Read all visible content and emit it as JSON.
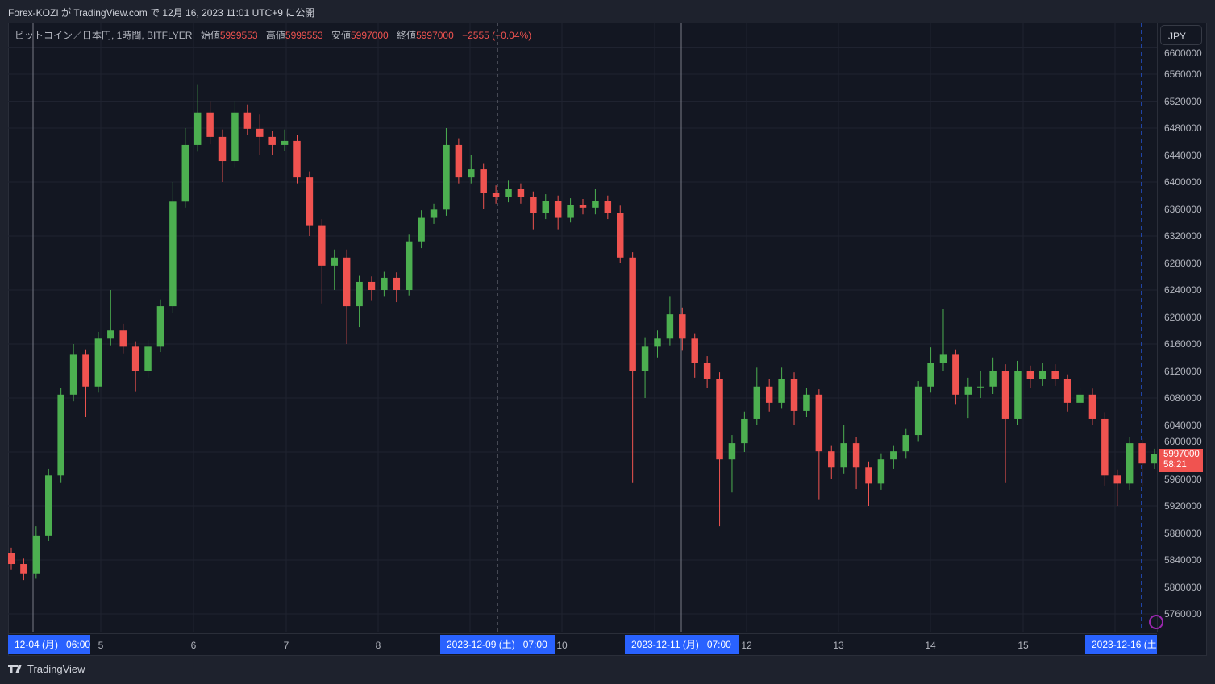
{
  "header": {
    "published": "Forex-KOZI が TradingView.com で 12月 16, 2023 11:01 UTC+9 に公開"
  },
  "legend": {
    "symbol": "ビットコイン／日本円, 1時間, BITFLYER",
    "open_label": "始値",
    "open": "5999553",
    "high_label": "高値",
    "high": "5999553",
    "low_label": "安値",
    "low": "5997000",
    "close_label": "終値",
    "close": "5997000",
    "change": "−2555 (−0.04%)"
  },
  "currency_button": "JPY",
  "last_price": {
    "value": "5997000",
    "countdown": "58:21"
  },
  "footer": {
    "brand": "TradingView"
  },
  "colors": {
    "up": "#4caf50",
    "down": "#f05350",
    "background": "#131722",
    "highlight": "#2962ff",
    "grid": "#1f2330"
  },
  "chart_data": {
    "type": "candlestick",
    "title": "",
    "ylim": [
      5740000,
      6640000
    ],
    "grid": true,
    "y_ticks": [
      "6600000",
      "6560000",
      "6520000",
      "6480000",
      "6440000",
      "6400000",
      "6360000",
      "6320000",
      "6280000",
      "6240000",
      "6200000",
      "6160000",
      "6120000",
      "6080000",
      "6040000",
      "6000000",
      "5960000",
      "5920000",
      "5880000",
      "5840000",
      "5800000",
      "5760000"
    ],
    "x_day_labels": [
      "5",
      "6",
      "7",
      "8",
      "10",
      "12",
      "13",
      "14",
      "15"
    ],
    "x_highlight_labels": [
      "12-04 (月)   06:00",
      "2023-12-09 (土)   07:00",
      "2023-12-11 (月)   07:00",
      "2023-12-16 (土"
    ],
    "ohlc_fields": [
      "open",
      "high",
      "low",
      "close"
    ],
    "candles": [
      [
        5850000,
        5858000,
        5826000,
        5834000
      ],
      [
        5834000,
        5842000,
        5810000,
        5820000
      ],
      [
        5820000,
        5890000,
        5812000,
        5876000
      ],
      [
        5876000,
        5975000,
        5868000,
        5965000
      ],
      [
        5965000,
        6095000,
        5955000,
        6085000
      ],
      [
        6085000,
        6160000,
        6075000,
        6144000
      ],
      [
        6144000,
        6152000,
        6052000,
        6097000
      ],
      [
        6097000,
        6178000,
        6088000,
        6168000
      ],
      [
        6168000,
        6240000,
        6158000,
        6180000
      ],
      [
        6180000,
        6190000,
        6146000,
        6156000
      ],
      [
        6156000,
        6164000,
        6090000,
        6120000
      ],
      [
        6120000,
        6166000,
        6110000,
        6156000
      ],
      [
        6156000,
        6226000,
        6148000,
        6216000
      ],
      [
        6216000,
        6400000,
        6206000,
        6371000
      ],
      [
        6371000,
        6480000,
        6362000,
        6455000
      ],
      [
        6455000,
        6545000,
        6445000,
        6503000
      ],
      [
        6503000,
        6520000,
        6456000,
        6467000
      ],
      [
        6467000,
        6478000,
        6400000,
        6431000
      ],
      [
        6431000,
        6520000,
        6422000,
        6503000
      ],
      [
        6503000,
        6515000,
        6470000,
        6479000
      ],
      [
        6479000,
        6500000,
        6440000,
        6467000
      ],
      [
        6467000,
        6476000,
        6440000,
        6455000
      ],
      [
        6455000,
        6478000,
        6446000,
        6461000
      ],
      [
        6461000,
        6470000,
        6398000,
        6407000
      ],
      [
        6407000,
        6416000,
        6320000,
        6336000
      ],
      [
        6336000,
        6345000,
        6220000,
        6276000
      ],
      [
        6276000,
        6300000,
        6240000,
        6288000
      ],
      [
        6288000,
        6300000,
        6160000,
        6216000
      ],
      [
        6216000,
        6262000,
        6185000,
        6252000
      ],
      [
        6252000,
        6260000,
        6225000,
        6240000
      ],
      [
        6240000,
        6268000,
        6230000,
        6258000
      ],
      [
        6258000,
        6266000,
        6222000,
        6240000
      ],
      [
        6240000,
        6322000,
        6232000,
        6312000
      ],
      [
        6312000,
        6358000,
        6302000,
        6348000
      ],
      [
        6348000,
        6368000,
        6338000,
        6359000
      ],
      [
        6359000,
        6480000,
        6350000,
        6455000
      ],
      [
        6455000,
        6465000,
        6398000,
        6407000
      ],
      [
        6407000,
        6440000,
        6398000,
        6419000
      ],
      [
        6419000,
        6428000,
        6360000,
        6384000
      ],
      [
        6384000,
        6395000,
        6368000,
        6378000
      ],
      [
        6378000,
        6402000,
        6370000,
        6390000
      ],
      [
        6390000,
        6398000,
        6368000,
        6378000
      ],
      [
        6378000,
        6386000,
        6330000,
        6354000
      ],
      [
        6354000,
        6382000,
        6345000,
        6372000
      ],
      [
        6372000,
        6380000,
        6330000,
        6348000
      ],
      [
        6348000,
        6376000,
        6340000,
        6366000
      ],
      [
        6366000,
        6375000,
        6352000,
        6362000
      ],
      [
        6362000,
        6390000,
        6352000,
        6372000
      ],
      [
        6372000,
        6380000,
        6345000,
        6354000
      ],
      [
        6354000,
        6365000,
        6280000,
        6288000
      ],
      [
        6288000,
        6296000,
        5955000,
        6120000
      ],
      [
        6120000,
        6170000,
        6080000,
        6156000
      ],
      [
        6156000,
        6180000,
        6140000,
        6168000
      ],
      [
        6168000,
        6230000,
        6158000,
        6204000
      ],
      [
        6204000,
        6214000,
        6150000,
        6168000
      ],
      [
        6168000,
        6176000,
        6110000,
        6132000
      ],
      [
        6132000,
        6142000,
        6095000,
        6108000
      ],
      [
        6108000,
        6118000,
        5890000,
        5989000
      ],
      [
        5989000,
        6025000,
        5940000,
        6013000
      ],
      [
        6013000,
        6060000,
        6000000,
        6049000
      ],
      [
        6049000,
        6125000,
        6040000,
        6097000
      ],
      [
        6097000,
        6108000,
        6060000,
        6073000
      ],
      [
        6073000,
        6125000,
        6064000,
        6108000
      ],
      [
        6108000,
        6118000,
        6040000,
        6061000
      ],
      [
        6061000,
        6095000,
        6052000,
        6085000
      ],
      [
        6085000,
        6093000,
        5930000,
        6001000
      ],
      [
        6001000,
        6010000,
        5960000,
        5977000
      ],
      [
        5977000,
        6040000,
        5968000,
        6013000
      ],
      [
        6013000,
        6022000,
        5945000,
        5977000
      ],
      [
        5977000,
        5986000,
        5920000,
        5953000
      ],
      [
        5953000,
        5998000,
        5944000,
        5989000
      ],
      [
        5989000,
        6010000,
        5975000,
        6001000
      ],
      [
        6001000,
        6035000,
        5990000,
        6025000
      ],
      [
        6025000,
        6105000,
        6015000,
        6097000
      ],
      [
        6097000,
        6155000,
        6088000,
        6132000
      ],
      [
        6132000,
        6212000,
        6120000,
        6144000
      ],
      [
        6144000,
        6152000,
        6070000,
        6085000
      ],
      [
        6085000,
        6110000,
        6050000,
        6097000
      ],
      [
        6097000,
        6120000,
        6080000,
        6097000
      ],
      [
        6097000,
        6140000,
        6086000,
        6120000
      ],
      [
        6120000,
        6130000,
        5955000,
        6049000
      ],
      [
        6049000,
        6135000,
        6040000,
        6120000
      ],
      [
        6120000,
        6128000,
        6095000,
        6108000
      ],
      [
        6108000,
        6132000,
        6098000,
        6120000
      ],
      [
        6120000,
        6130000,
        6098000,
        6108000
      ],
      [
        6108000,
        6115000,
        6060000,
        6073000
      ],
      [
        6073000,
        6095000,
        6064000,
        6085000
      ],
      [
        6085000,
        6094000,
        6040000,
        6049000
      ],
      [
        6049000,
        6058000,
        5950000,
        5965000
      ],
      [
        5965000,
        5974000,
        5920000,
        5953000
      ],
      [
        5953000,
        6022000,
        5944000,
        6013000
      ],
      [
        6013000,
        6020000,
        5950000,
        5983000
      ],
      [
        5983000,
        6005000,
        5975000,
        5997000
      ]
    ],
    "last_price_line": 5997000
  }
}
